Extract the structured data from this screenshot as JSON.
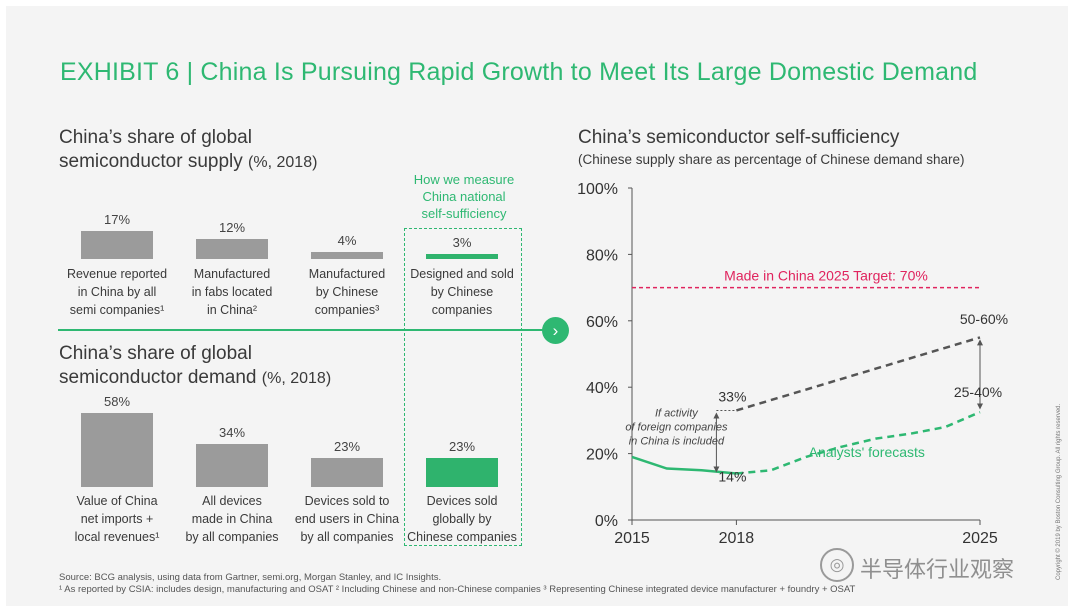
{
  "title": "EXHIBIT 6 | China Is Pursuing Rapid Growth to Meet Its Large Domestic Demand",
  "supply": {
    "heading_line1": "China’s share of global",
    "heading_line2": "semiconductor supply",
    "heading_unit": "(%, 2018)"
  },
  "demand": {
    "heading_line1": "China’s share of global",
    "heading_line2": "semiconductor demand",
    "heading_unit": "(%, 2018)"
  },
  "measure_box_label": [
    "How we measure",
    "China national",
    "self-sufficiency"
  ],
  "right": {
    "heading": "China’s semiconductor self-sufficiency",
    "subheading": "(Chinese supply share as percentage of Chinese demand share)"
  },
  "footnotes": {
    "source": "Source: BCG analysis, using data from Gartner, semi.org, Morgan Stanley, and IC Insights.",
    "notes": "¹ As reported by CSIA: includes design, manufacturing and OSAT  ² Including Chinese and non-Chinese companies  ³ Representing Chinese integrated device manufacturer + foundry + OSAT"
  },
  "copyright": "Copyright © 2019 by Boston Consulting Group. All rights reserved.",
  "watermark": "半导体行业观察",
  "colors": {
    "accent": "#2eb872",
    "target": "#e0245e",
    "bar_gray": "#9b9b9b",
    "bar_green": "#2fb36d",
    "dashed_gray": "#555555"
  },
  "chart_data": [
    {
      "type": "bar",
      "title": "China’s share of global semiconductor supply (%, 2018)",
      "categories": [
        [
          "Revenue reported",
          "in China by all",
          "semi companies¹"
        ],
        [
          "Manufactured",
          "in fabs located",
          "in China²"
        ],
        [
          "Manufactured",
          "by Chinese",
          "companies³"
        ],
        [
          "Designed and sold",
          "by Chinese",
          "companies"
        ]
      ],
      "values": [
        17,
        12,
        4,
        3
      ],
      "value_labels": [
        "17%",
        "12%",
        "4%",
        "3%"
      ],
      "highlight_index": 3
    },
    {
      "type": "bar",
      "title": "China’s share of global semiconductor demand (%, 2018)",
      "categories": [
        [
          "Value of China",
          "net imports +",
          "local revenues¹"
        ],
        [
          "All devices",
          "made in China",
          "by all companies"
        ],
        [
          "Devices sold to",
          "end users in China",
          "by all companies"
        ],
        [
          "Devices sold",
          "globally by",
          "Chinese companies"
        ]
      ],
      "values": [
        58,
        34,
        23,
        23
      ],
      "value_labels": [
        "58%",
        "34%",
        "23%",
        "23%"
      ],
      "highlight_index": 3
    },
    {
      "type": "line",
      "title": "China’s semiconductor self-sufficiency",
      "ylim": [
        0,
        100
      ],
      "yticks": [
        "0%",
        "20%",
        "40%",
        "60%",
        "80%",
        "100%"
      ],
      "ytick_values": [
        0,
        20,
        40,
        60,
        80,
        100
      ],
      "xlim": [
        2015,
        2025
      ],
      "xticks": [
        "2015",
        "2018",
        "2025"
      ],
      "xtick_values": [
        2015,
        2018,
        2025
      ],
      "target": {
        "value": 70,
        "label": "Made in China 2025 Target: 70%"
      },
      "series": [
        {
          "style": "solid-green",
          "x": [
            2015,
            2016,
            2017,
            2018
          ],
          "y": [
            19,
            15.5,
            15,
            14
          ]
        },
        {
          "name": "Analysts' forecasts",
          "style": "dashed-green",
          "x": [
            2018,
            2019,
            2020,
            2021,
            2022,
            2023,
            2024,
            2025
          ],
          "y": [
            14,
            15,
            19,
            22,
            24.5,
            26,
            28,
            32.5
          ]
        },
        {
          "style": "dashed-gray",
          "x": [
            2018,
            2025
          ],
          "y": [
            33,
            55
          ]
        }
      ],
      "annotations": {
        "label_33": "33%",
        "label_14": "14%",
        "label_50_60": "50-60%",
        "label_25_40": "25-40%",
        "analysts": "Analysts' forecasts",
        "foreign_note": [
          "If activity",
          "of foreign companies",
          "in China is included"
        ]
      }
    }
  ]
}
